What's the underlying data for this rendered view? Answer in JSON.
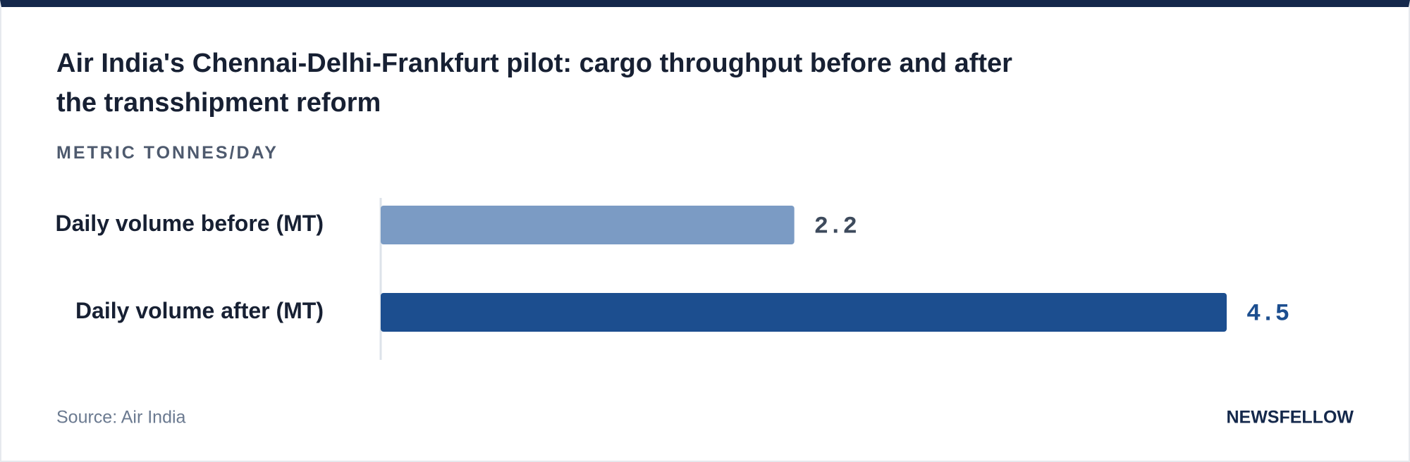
{
  "chart_data": {
    "type": "bar",
    "orientation": "horizontal",
    "title": "Air India's Chennai-Delhi-Frankfurt pilot: cargo throughput before and after the transshipment reform",
    "subtitle": "METRIC TONNES/DAY",
    "categories": [
      "Daily volume before (MT)",
      "Daily volume after (MT)"
    ],
    "values": [
      2.2,
      4.5
    ],
    "colors": [
      "#7b9bc4",
      "#1c4e8f"
    ],
    "label_colors": [
      "#3d4a5c",
      "#1c4e8f"
    ]
  },
  "source": "Source: Air India",
  "brand": "NEWSFELLOW"
}
